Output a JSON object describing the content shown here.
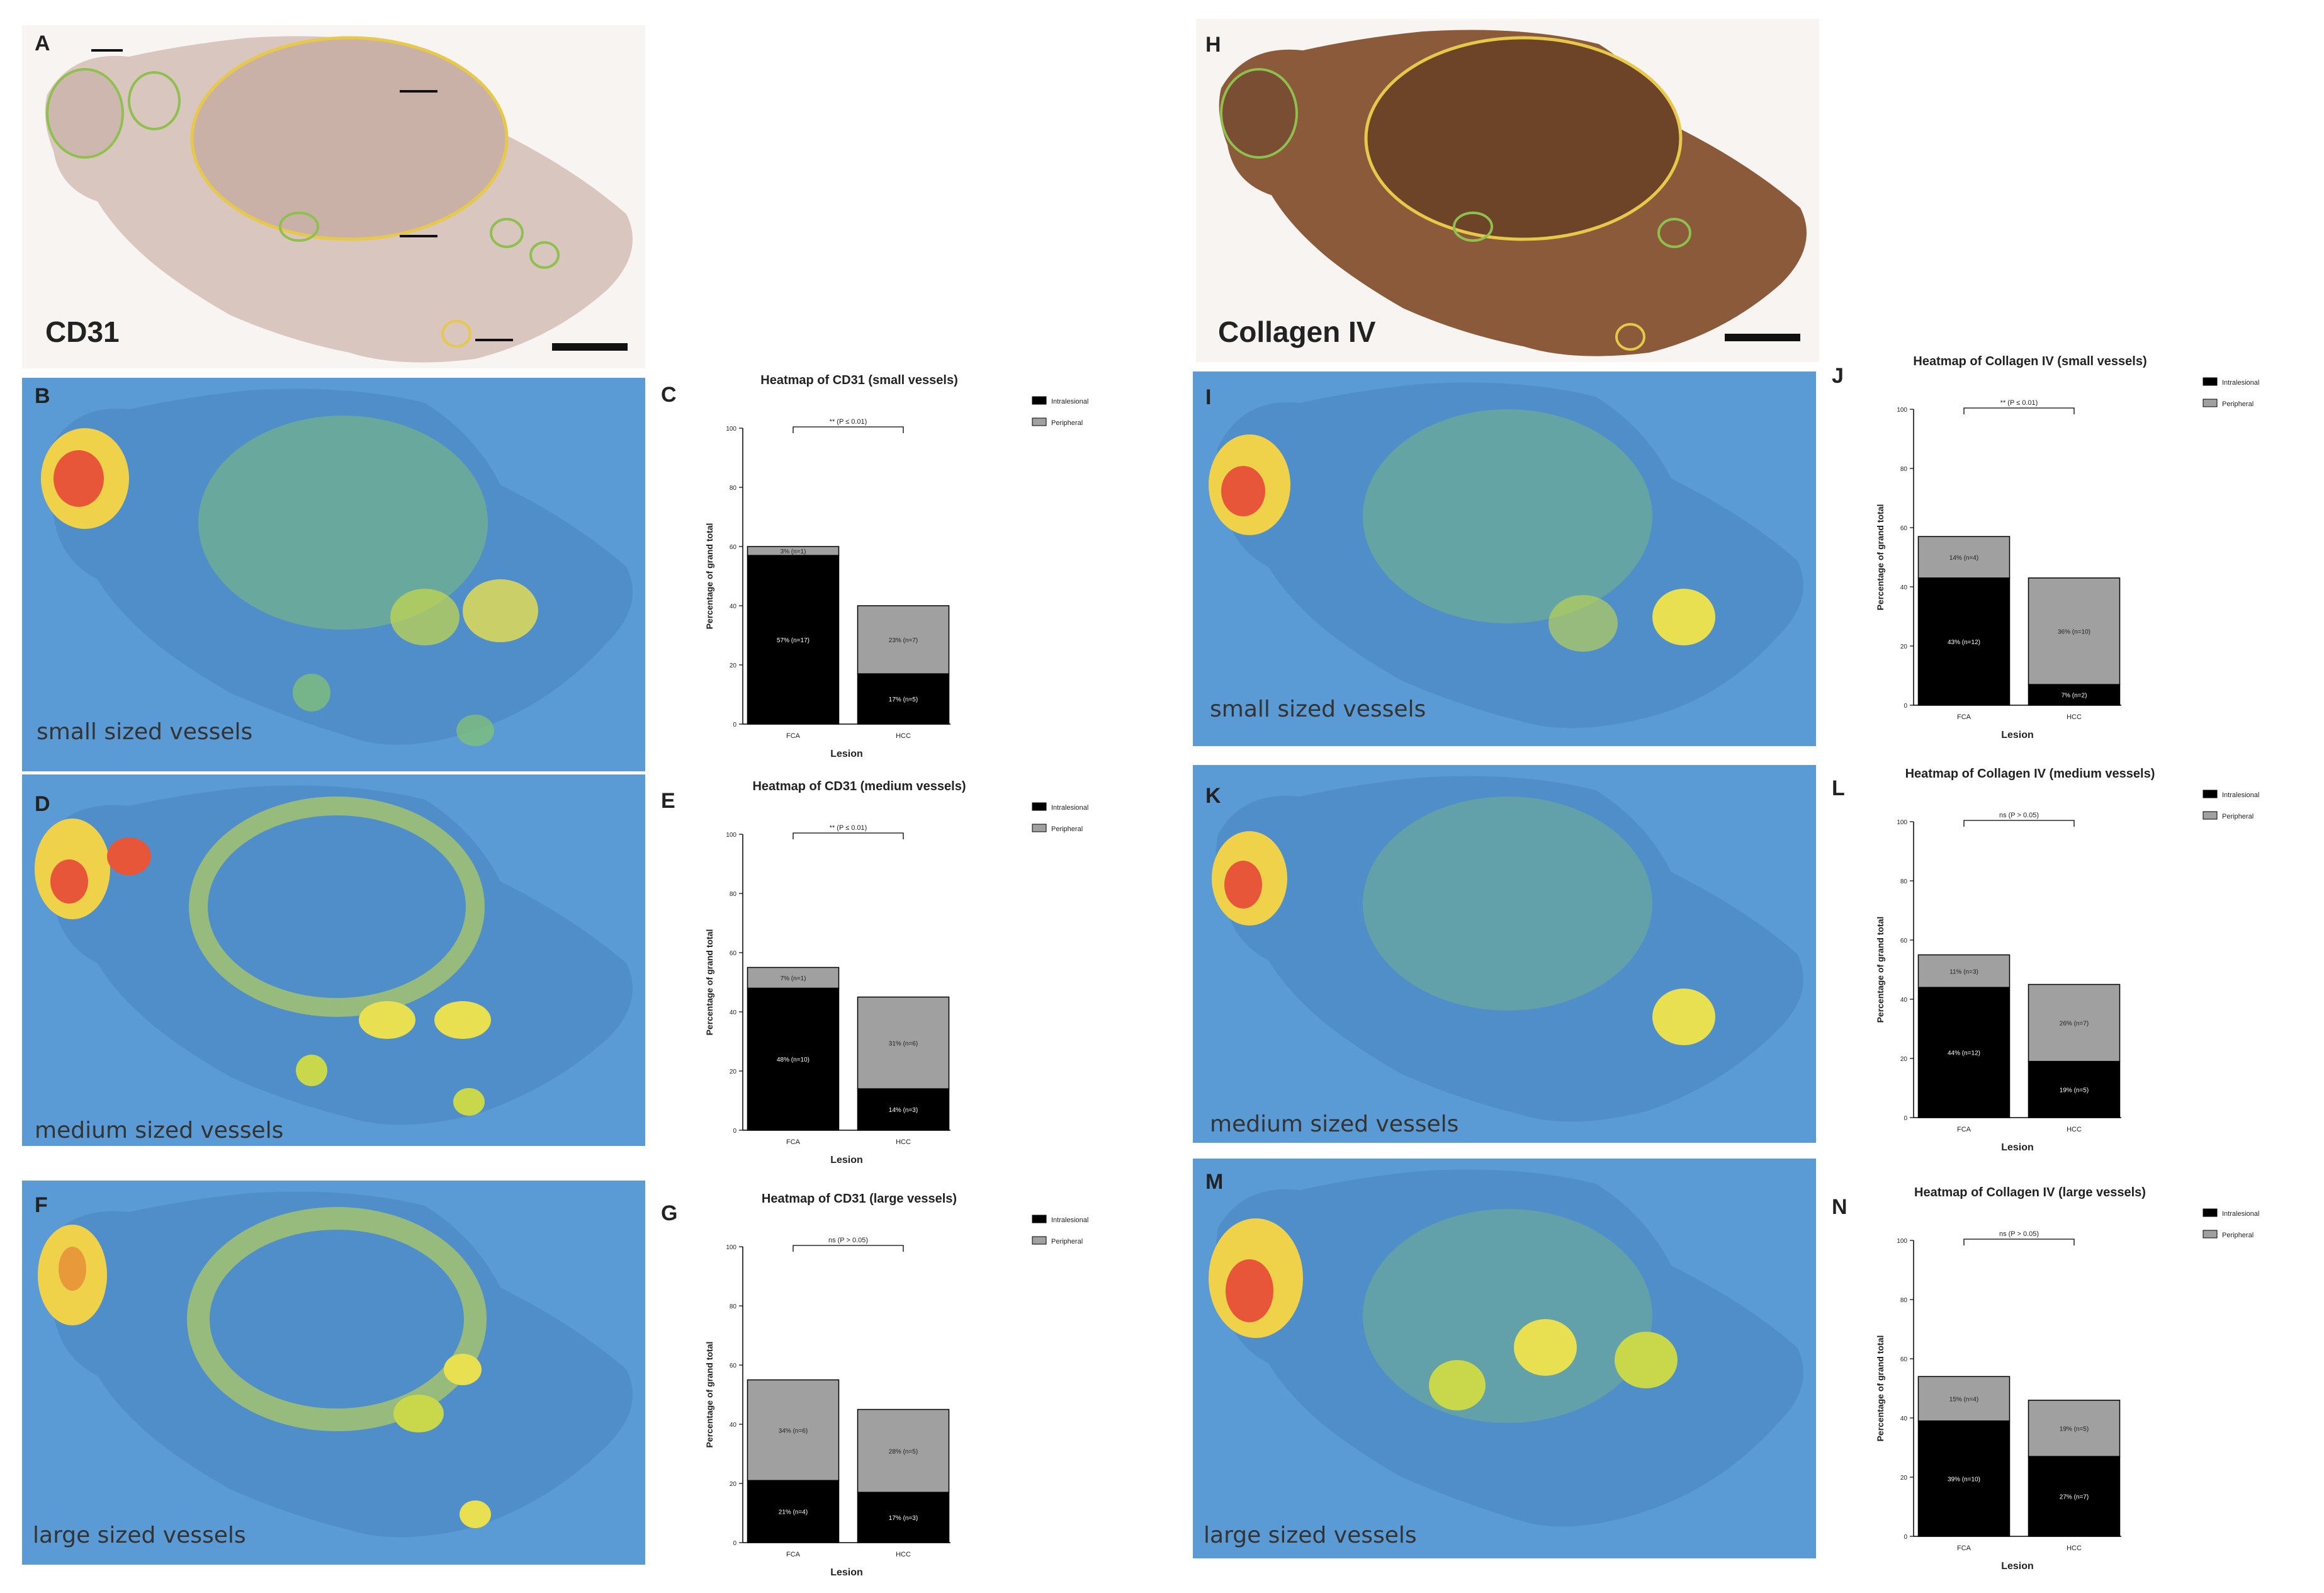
{
  "panels": {
    "A": {
      "letter": "A",
      "stain": "CD31"
    },
    "B": {
      "letter": "B",
      "caption": "small sized vessels"
    },
    "D": {
      "letter": "D",
      "caption": "medium sized vessels"
    },
    "F": {
      "letter": "F",
      "caption": "large sized vessels"
    },
    "H": {
      "letter": "H",
      "stain": "Collagen IV"
    },
    "I": {
      "letter": "I",
      "caption": "small sized vessels"
    },
    "K": {
      "letter": "K",
      "caption": "medium sized vessels"
    },
    "M": {
      "letter": "M",
      "caption": "large sized vessels"
    }
  },
  "colors": {
    "heat_bg": "#5b9bd5",
    "tissue_bg": "#f4f0ee",
    "ihc_cd31": "#d9c8c2",
    "ihc_col": "#8a5a3a",
    "intralesional": "#000000",
    "peripheral": "#a0a0a0"
  },
  "chart_data": [
    {
      "id": "C",
      "letter": "C",
      "type": "bar",
      "stacked": true,
      "title": "Heatmap of CD31 (small vessels)",
      "xlabel": "Lesion",
      "ylabel": "Percentage of grand total",
      "ylim": [
        0,
        100
      ],
      "yticks": [
        "0",
        "20",
        "40",
        "60",
        "80",
        "100"
      ],
      "categories": [
        "FCA",
        "HCC"
      ],
      "legend": [
        "Intralesional",
        "Peripheral"
      ],
      "significance": "** (P ≤ 0.01)",
      "series": [
        {
          "name": "Intralesional",
          "values": [
            57,
            17
          ],
          "labels": [
            "57% (n=17)",
            "17% (n=5)"
          ]
        },
        {
          "name": "Peripheral",
          "values": [
            3,
            23
          ],
          "labels": [
            "3% (n=1)",
            "23% (n=7)"
          ]
        }
      ]
    },
    {
      "id": "E",
      "letter": "E",
      "type": "bar",
      "stacked": true,
      "title": "Heatmap of CD31 (medium vessels)",
      "xlabel": "Lesion",
      "ylabel": "Percentage of grand total",
      "ylim": [
        0,
        100
      ],
      "yticks": [
        "0",
        "20",
        "40",
        "60",
        "80",
        "100"
      ],
      "categories": [
        "FCA",
        "HCC"
      ],
      "legend": [
        "Intralesional",
        "Peripheral"
      ],
      "significance": "** (P ≤ 0.01)",
      "series": [
        {
          "name": "Intralesional",
          "values": [
            48,
            14
          ],
          "labels": [
            "48% (n=10)",
            "14% (n=3)"
          ]
        },
        {
          "name": "Peripheral",
          "values": [
            7,
            31
          ],
          "labels": [
            "7% (n=1)",
            "31% (n=6)"
          ]
        }
      ]
    },
    {
      "id": "G",
      "letter": "G",
      "type": "bar",
      "stacked": true,
      "title": "Heatmap of CD31 (large vessels)",
      "xlabel": "Lesion",
      "ylabel": "Percentage of grand total",
      "ylim": [
        0,
        100
      ],
      "yticks": [
        "0",
        "20",
        "40",
        "60",
        "80",
        "100"
      ],
      "categories": [
        "FCA",
        "HCC"
      ],
      "legend": [
        "Intralesional",
        "Peripheral"
      ],
      "significance": "ns (P > 0.05)",
      "series": [
        {
          "name": "Intralesional",
          "values": [
            21,
            17
          ],
          "labels": [
            "21% (n=4)",
            "17% (n=3)"
          ]
        },
        {
          "name": "Peripheral",
          "values": [
            34,
            28
          ],
          "labels": [
            "34% (n=6)",
            "28% (n=5)"
          ]
        }
      ]
    },
    {
      "id": "J",
      "letter": "J",
      "type": "bar",
      "stacked": true,
      "title": "Heatmap of Collagen IV (small vessels)",
      "xlabel": "Lesion",
      "ylabel": "Percentage of grand total",
      "ylim": [
        0,
        100
      ],
      "yticks": [
        "0",
        "20",
        "40",
        "60",
        "80",
        "100"
      ],
      "categories": [
        "FCA",
        "HCC"
      ],
      "legend": [
        "Intralesional",
        "Peripheral"
      ],
      "significance": "** (P ≤ 0.01)",
      "series": [
        {
          "name": "Intralesional",
          "values": [
            43,
            7
          ],
          "labels": [
            "43% (n=12)",
            "7% (n=2)"
          ]
        },
        {
          "name": "Peripheral",
          "values": [
            14,
            36
          ],
          "labels": [
            "14% (n=4)",
            "36% (n=10)"
          ]
        }
      ]
    },
    {
      "id": "L",
      "letter": "L",
      "type": "bar",
      "stacked": true,
      "title": "Heatmap of Collagen IV (medium vessels)",
      "xlabel": "Lesion",
      "ylabel": "Percentage of grand total",
      "ylim": [
        0,
        100
      ],
      "yticks": [
        "0",
        "20",
        "40",
        "60",
        "80",
        "100"
      ],
      "categories": [
        "FCA",
        "HCC"
      ],
      "legend": [
        "Intralesional",
        "Peripheral"
      ],
      "significance": "ns (P > 0.05)",
      "series": [
        {
          "name": "Intralesional",
          "values": [
            44,
            19
          ],
          "labels": [
            "44% (n=12)",
            "19% (n=5)"
          ]
        },
        {
          "name": "Peripheral",
          "values": [
            11,
            26
          ],
          "labels": [
            "11% (n=3)",
            "26% (n=7)"
          ]
        }
      ]
    },
    {
      "id": "N",
      "letter": "N",
      "type": "bar",
      "stacked": true,
      "title": "Heatmap of Collagen IV (large vessels)",
      "xlabel": "Lesion",
      "ylabel": "Percentage of grand total",
      "ylim": [
        0,
        100
      ],
      "yticks": [
        "0",
        "20",
        "40",
        "60",
        "80",
        "100"
      ],
      "categories": [
        "FCA",
        "HCC"
      ],
      "legend": [
        "Intralesional",
        "Peripheral"
      ],
      "significance": "ns (P > 0.05)",
      "series": [
        {
          "name": "Intralesional",
          "values": [
            39,
            27
          ],
          "labels": [
            "39% (n=10)",
            "27% (n=7)"
          ]
        },
        {
          "name": "Peripheral",
          "values": [
            15,
            19
          ],
          "labels": [
            "15% (n=4)",
            "19% (n=5)"
          ]
        }
      ]
    }
  ]
}
